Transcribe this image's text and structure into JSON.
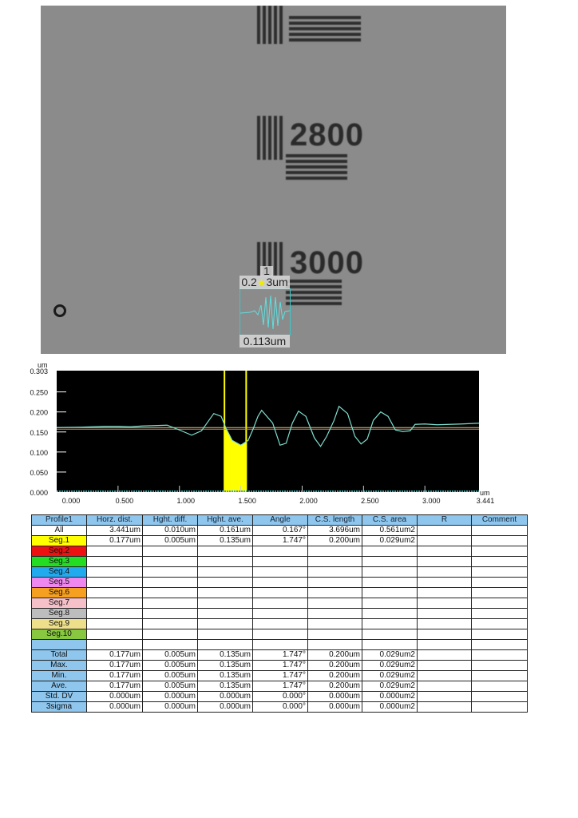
{
  "image": {
    "group_labels": [
      "2800",
      "3000"
    ],
    "marker_number": "1",
    "top_label_parts": [
      "0.2",
      "3um"
    ],
    "bottom_label": "0.113um",
    "overlay_color": "#3cc8c8"
  },
  "chart_data": {
    "type": "line",
    "xlabel": "um",
    "ylabel": "um",
    "xlim": [
      0,
      3.441
    ],
    "ylim": [
      0,
      0.303
    ],
    "x_ticks": [
      "0.000",
      "0.500",
      "1.000",
      "1.500",
      "2.000",
      "2.500",
      "3.000",
      "3.441"
    ],
    "y_ticks": [
      "0.303",
      "0.250",
      "0.200",
      "0.150",
      "0.100",
      "0.050",
      "0.000"
    ],
    "background": "#000000",
    "line_color": "#7fe0d0",
    "segment_color": "#ffff00",
    "segment": {
      "x_start": 1.367,
      "x_end": 1.544
    },
    "reference_lines": [
      0.161,
      0.157
    ],
    "series": [
      {
        "x": [
          0,
          0.2,
          0.4,
          0.5,
          0.6,
          0.7,
          0.8,
          0.9,
          1.0,
          1.1,
          1.18,
          1.28,
          1.34,
          1.38,
          1.43,
          1.5,
          1.56,
          1.6,
          1.64,
          1.67,
          1.76,
          1.82,
          1.87,
          1.92,
          1.97,
          2.03,
          2.1,
          2.15,
          2.2,
          2.26,
          2.3,
          2.37,
          2.43,
          2.48,
          2.53,
          2.58,
          2.64,
          2.7,
          2.76,
          2.82,
          2.88,
          2.92,
          3.0,
          3.1,
          3.2,
          3.3,
          3.441
        ],
        "y": [
          0.161,
          0.162,
          0.164,
          0.164,
          0.163,
          0.165,
          0.166,
          0.167,
          0.155,
          0.142,
          0.153,
          0.196,
          0.189,
          0.159,
          0.129,
          0.117,
          0.129,
          0.157,
          0.189,
          0.204,
          0.172,
          0.117,
          0.122,
          0.172,
          0.202,
          0.189,
          0.135,
          0.114,
          0.139,
          0.179,
          0.214,
          0.196,
          0.139,
          0.12,
          0.132,
          0.179,
          0.2,
          0.189,
          0.155,
          0.151,
          0.153,
          0.169,
          0.17,
          0.168,
          0.169,
          0.17,
          0.172
        ]
      }
    ]
  },
  "table": {
    "headers": [
      "Profile1",
      "Horz. dist.",
      "Hght. diff.",
      "Hght. ave.",
      "Angle",
      "C.S. length",
      "C.S. area",
      "R",
      "Comment"
    ],
    "rows": [
      {
        "label": "All",
        "color": "#ffffff",
        "cells": [
          "3.441um",
          "0.010um",
          "0.161um",
          "0.167°",
          "3.696um",
          "0.561um2",
          "",
          ""
        ]
      },
      {
        "label": "Seg.1",
        "color": "#ffff00",
        "cells": [
          "0.177um",
          "0.005um",
          "0.135um",
          "1.747°",
          "0.200um",
          "0.029um2",
          "",
          ""
        ]
      },
      {
        "label": "Seg.2",
        "color": "#ee1111",
        "cells": [
          "",
          "",
          "",
          "",
          "",
          "",
          "",
          ""
        ]
      },
      {
        "label": "Seg.3",
        "color": "#22dd22",
        "cells": [
          "",
          "",
          "",
          "",
          "",
          "",
          "",
          ""
        ]
      },
      {
        "label": "Seg.4",
        "color": "#22aaee",
        "cells": [
          "",
          "",
          "",
          "",
          "",
          "",
          "",
          ""
        ]
      },
      {
        "label": "Seg.5",
        "color": "#ee88ee",
        "cells": [
          "",
          "",
          "",
          "",
          "",
          "",
          "",
          ""
        ]
      },
      {
        "label": "Seg.6",
        "color": "#f5a020",
        "cells": [
          "",
          "",
          "",
          "",
          "",
          "",
          "",
          ""
        ]
      },
      {
        "label": "Seg.7",
        "color": "#f5c0c8",
        "cells": [
          "",
          "",
          "",
          "",
          "",
          "",
          "",
          ""
        ]
      },
      {
        "label": "Seg.8",
        "color": "#bdbdbd",
        "cells": [
          "",
          "",
          "",
          "",
          "",
          "",
          "",
          ""
        ]
      },
      {
        "label": "Seg.9",
        "color": "#eee08a",
        "cells": [
          "",
          "",
          "",
          "",
          "",
          "",
          "",
          ""
        ]
      },
      {
        "label": "Seg.10",
        "color": "#88c840",
        "cells": [
          "",
          "",
          "",
          "",
          "",
          "",
          "",
          ""
        ]
      },
      {
        "label": "",
        "color": "#8ec6ee",
        "cells": [
          "",
          "",
          "",
          "",
          "",
          "",
          "",
          ""
        ]
      },
      {
        "label": "Total",
        "color": "#8ec6ee",
        "cells": [
          "0.177um",
          "0.005um",
          "0.135um",
          "1.747°",
          "0.200um",
          "0.029um2",
          "",
          ""
        ]
      },
      {
        "label": "Max.",
        "color": "#8ec6ee",
        "cells": [
          "0.177um",
          "0.005um",
          "0.135um",
          "1.747°",
          "0.200um",
          "0.029um2",
          "",
          ""
        ]
      },
      {
        "label": "Min.",
        "color": "#8ec6ee",
        "cells": [
          "0.177um",
          "0.005um",
          "0.135um",
          "1.747°",
          "0.200um",
          "0.029um2",
          "",
          ""
        ]
      },
      {
        "label": "Ave.",
        "color": "#8ec6ee",
        "cells": [
          "0.177um",
          "0.005um",
          "0.135um",
          "1.747°",
          "0.200um",
          "0.029um2",
          "",
          ""
        ]
      },
      {
        "label": "Std. DV",
        "color": "#8ec6ee",
        "cells": [
          "0.000um",
          "0.000um",
          "0.000um",
          "0.000°",
          "0.000um",
          "0.000um2",
          "",
          ""
        ]
      },
      {
        "label": "3sigma",
        "color": "#8ec6ee",
        "cells": [
          "0.000um",
          "0.000um",
          "0.000um",
          "0.000°",
          "0.000um",
          "0.000um2",
          "",
          ""
        ]
      }
    ]
  }
}
